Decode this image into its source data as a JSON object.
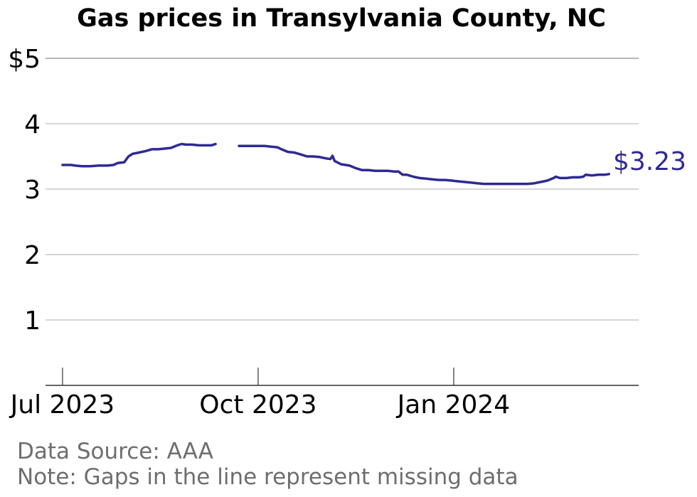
{
  "chart_data": {
    "type": "line",
    "title": "Gas prices in Transylvania County, NC",
    "xlabel": "",
    "ylabel": "",
    "ylim": [
      0,
      5
    ],
    "y_ticks": [
      1,
      2,
      3,
      4,
      5
    ],
    "y_tick_labels": [
      "1",
      "2",
      "3",
      "4",
      "$5"
    ],
    "x_ticks": [
      "2023-07-01",
      "2023-10-01",
      "2024-01-01"
    ],
    "x_tick_labels": [
      "Jul 2023",
      "Oct 2023",
      "Jan 2024"
    ],
    "xlim": [
      "2023-06-23",
      "2024-03-28"
    ],
    "grid": "horizontal",
    "line_color": "#2e2a94",
    "end_label": "$3.23",
    "series": [
      {
        "segments": [
          [
            [
              "2023-07-01",
              3.37
            ],
            [
              "2023-07-05",
              3.37
            ],
            [
              "2023-07-07",
              3.36
            ],
            [
              "2023-07-10",
              3.35
            ],
            [
              "2023-07-14",
              3.35
            ],
            [
              "2023-07-18",
              3.36
            ],
            [
              "2023-07-22",
              3.36
            ],
            [
              "2023-07-25",
              3.37
            ],
            [
              "2023-07-27",
              3.4
            ],
            [
              "2023-07-30",
              3.41
            ],
            [
              "2023-08-01",
              3.5
            ],
            [
              "2023-08-03",
              3.54
            ],
            [
              "2023-08-06",
              3.56
            ],
            [
              "2023-08-09",
              3.58
            ],
            [
              "2023-08-12",
              3.61
            ],
            [
              "2023-08-15",
              3.61
            ],
            [
              "2023-08-18",
              3.62
            ],
            [
              "2023-08-21",
              3.63
            ],
            [
              "2023-08-24",
              3.67
            ],
            [
              "2023-08-26",
              3.69
            ],
            [
              "2023-08-28",
              3.68
            ],
            [
              "2023-08-31",
              3.68
            ],
            [
              "2023-09-03",
              3.67
            ],
            [
              "2023-09-06",
              3.67
            ],
            [
              "2023-09-09",
              3.67
            ],
            [
              "2023-09-11",
              3.69
            ]
          ],
          [
            [
              "2023-09-22",
              3.66
            ],
            [
              "2023-09-25",
              3.66
            ],
            [
              "2023-09-28",
              3.66
            ],
            [
              "2023-10-01",
              3.66
            ],
            [
              "2023-10-04",
              3.66
            ],
            [
              "2023-10-07",
              3.65
            ],
            [
              "2023-10-10",
              3.64
            ],
            [
              "2023-10-12",
              3.61
            ],
            [
              "2023-10-15",
              3.57
            ],
            [
              "2023-10-18",
              3.56
            ],
            [
              "2023-10-21",
              3.53
            ],
            [
              "2023-10-24",
              3.5
            ],
            [
              "2023-10-27",
              3.5
            ],
            [
              "2023-10-30",
              3.49
            ],
            [
              "2023-11-02",
              3.47
            ],
            [
              "2023-11-04",
              3.46
            ],
            [
              "2023-11-05",
              3.51
            ],
            [
              "2023-11-06",
              3.43
            ],
            [
              "2023-11-09",
              3.38
            ],
            [
              "2023-11-13",
              3.36
            ],
            [
              "2023-11-16",
              3.32
            ],
            [
              "2023-11-19",
              3.29
            ],
            [
              "2023-11-22",
              3.29
            ],
            [
              "2023-11-25",
              3.28
            ],
            [
              "2023-11-28",
              3.28
            ],
            [
              "2023-12-01",
              3.28
            ],
            [
              "2023-12-04",
              3.27
            ],
            [
              "2023-12-06",
              3.27
            ],
            [
              "2023-12-08",
              3.22
            ],
            [
              "2023-12-10",
              3.22
            ],
            [
              "2023-12-13",
              3.19
            ],
            [
              "2023-12-16",
              3.17
            ],
            [
              "2023-12-19",
              3.16
            ],
            [
              "2023-12-22",
              3.15
            ],
            [
              "2023-12-25",
              3.14
            ],
            [
              "2023-12-28",
              3.14
            ],
            [
              "2023-12-31",
              3.13
            ],
            [
              "2024-01-03",
              3.12
            ],
            [
              "2024-01-06",
              3.11
            ],
            [
              "2024-01-09",
              3.1
            ],
            [
              "2024-01-12",
              3.09
            ],
            [
              "2024-01-15",
              3.08
            ],
            [
              "2024-01-18",
              3.08
            ],
            [
              "2024-01-21",
              3.08
            ],
            [
              "2024-01-24",
              3.08
            ],
            [
              "2024-01-27",
              3.08
            ],
            [
              "2024-01-30",
              3.08
            ],
            [
              "2024-02-02",
              3.08
            ],
            [
              "2024-02-05",
              3.08
            ],
            [
              "2024-02-08",
              3.09
            ],
            [
              "2024-02-11",
              3.11
            ],
            [
              "2024-02-14",
              3.13
            ],
            [
              "2024-02-17",
              3.17
            ],
            [
              "2024-02-18",
              3.19
            ],
            [
              "2024-02-20",
              3.17
            ],
            [
              "2024-02-23",
              3.17
            ],
            [
              "2024-02-26",
              3.18
            ],
            [
              "2024-02-29",
              3.18
            ],
            [
              "2024-03-02",
              3.19
            ],
            [
              "2024-03-03",
              3.22
            ],
            [
              "2024-03-06",
              3.21
            ],
            [
              "2024-03-09",
              3.22
            ],
            [
              "2024-03-12",
              3.22
            ],
            [
              "2024-03-14",
              3.23
            ]
          ]
        ]
      }
    ]
  },
  "notes": {
    "source": "Data Source: AAA",
    "note": "Note: Gaps in the line represent missing data"
  }
}
